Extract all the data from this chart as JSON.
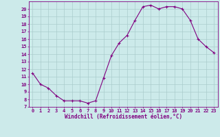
{
  "x_values": [
    0,
    1,
    2,
    3,
    4,
    5,
    6,
    7,
    8,
    9,
    10,
    11,
    12,
    13,
    14,
    15,
    16,
    17,
    18,
    19,
    20,
    21,
    22,
    23
  ],
  "y_values": [
    11.5,
    10.0,
    9.5,
    8.5,
    7.8,
    7.8,
    7.8,
    7.5,
    7.8,
    10.8,
    13.8,
    15.5,
    16.5,
    18.5,
    20.3,
    20.5,
    20.0,
    20.3,
    20.3,
    20.0,
    18.5,
    16.0,
    15.0,
    14.2
  ],
  "line_color": "#800080",
  "marker": "+",
  "marker_size": 3,
  "marker_linewidth": 0.8,
  "background_color": "#cceaea",
  "grid_color": "#aacccc",
  "xlabel": "Windchill (Refroidissement éolien,°C)",
  "xlabel_color": "#800080",
  "tick_color": "#800080",
  "ylim": [
    7,
    21
  ],
  "xlim": [
    -0.5,
    23.5
  ],
  "yticks": [
    7,
    8,
    9,
    10,
    11,
    12,
    13,
    14,
    15,
    16,
    17,
    18,
    19,
    20
  ],
  "xticks": [
    0,
    1,
    2,
    3,
    4,
    5,
    6,
    7,
    8,
    9,
    10,
    11,
    12,
    13,
    14,
    15,
    16,
    17,
    18,
    19,
    20,
    21,
    22,
    23
  ],
  "tick_fontsize": 5,
  "xlabel_fontsize": 5.5,
  "font_family": "monospace",
  "linewidth": 0.8
}
